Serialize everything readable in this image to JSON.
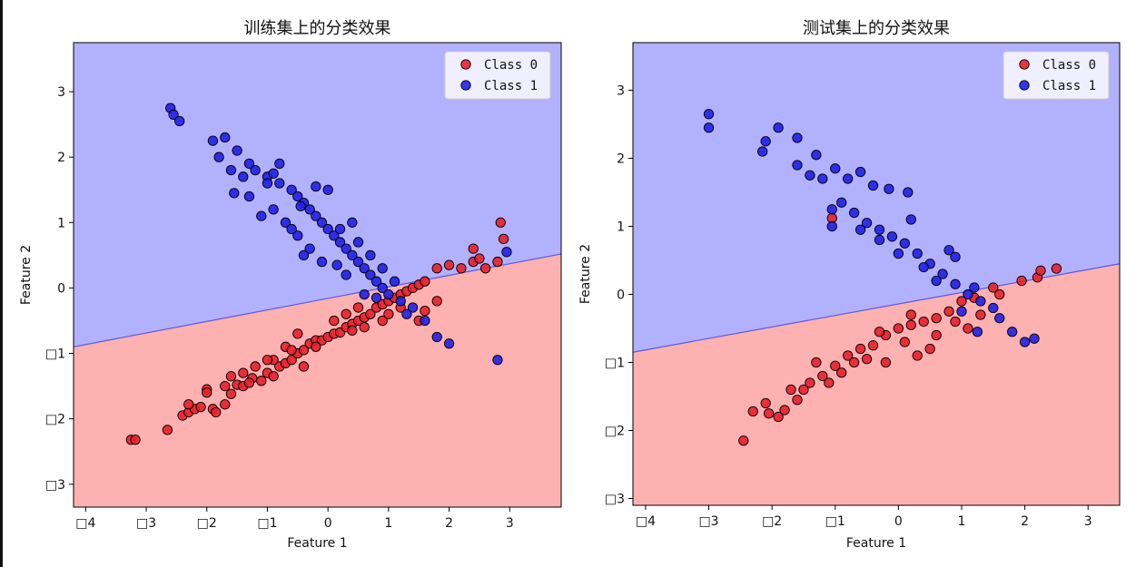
{
  "chart_data": [
    {
      "type": "scatter",
      "title": "训练集上的分类效果",
      "xlabel": "Feature 1",
      "ylabel": "Feature 2",
      "xlim": [
        -4.2,
        3.85
      ],
      "ylim": [
        -3.35,
        3.75
      ],
      "xticks": [
        -4,
        -3,
        -2,
        -1,
        0,
        1,
        2,
        3
      ],
      "xtick_labels": [
        "□4",
        "□3",
        "□2",
        "□1",
        "0",
        "1",
        "2",
        "3"
      ],
      "yticks": [
        -3,
        -2,
        -1,
        0,
        1,
        2,
        3
      ],
      "ytick_labels": [
        "□3",
        "□2",
        "□1",
        "0",
        "1",
        "2",
        "3"
      ],
      "legend_position": "top-right",
      "boundary": {
        "x": [
          -4.2,
          3.85
        ],
        "y": [
          -0.9,
          0.52
        ]
      },
      "regions": [
        {
          "name": "Class 1 region",
          "color": "#b1b1fe"
        },
        {
          "name": "Class 0 region",
          "color": "#feb1b1"
        }
      ],
      "series": [
        {
          "name": "Class 0",
          "color": "#e8202a",
          "points": [
            [
              -3.25,
              -2.32
            ],
            [
              -3.18,
              -2.32
            ],
            [
              -2.65,
              -2.17
            ],
            [
              -2.4,
              -1.95
            ],
            [
              -2.3,
              -1.9
            ],
            [
              -2.2,
              -1.85
            ],
            [
              -2.3,
              -1.78
            ],
            [
              -2.1,
              -1.82
            ],
            [
              -1.9,
              -1.85
            ],
            [
              -1.85,
              -1.9
            ],
            [
              -1.7,
              -1.78
            ],
            [
              -1.6,
              -1.62
            ],
            [
              -1.5,
              -1.48
            ],
            [
              -1.4,
              -1.5
            ],
            [
              -1.25,
              -1.38
            ],
            [
              -1.1,
              -1.42
            ],
            [
              -1.0,
              -1.3
            ],
            [
              -0.9,
              -1.35
            ],
            [
              -0.8,
              -1.2
            ],
            [
              -0.7,
              -1.15
            ],
            [
              -0.6,
              -1.1
            ],
            [
              -0.5,
              -1.0
            ],
            [
              -0.4,
              -0.95
            ],
            [
              -0.3,
              -0.85
            ],
            [
              -0.2,
              -0.8
            ],
            [
              -0.1,
              -0.8
            ],
            [
              0.0,
              -0.75
            ],
            [
              0.1,
              -0.7
            ],
            [
              0.2,
              -0.68
            ],
            [
              0.3,
              -0.6
            ],
            [
              0.4,
              -0.55
            ],
            [
              0.5,
              -0.5
            ],
            [
              0.6,
              -0.45
            ],
            [
              0.7,
              -0.4
            ],
            [
              0.8,
              -0.3
            ],
            [
              0.9,
              -0.25
            ],
            [
              1.0,
              -0.2
            ],
            [
              1.1,
              -0.15
            ],
            [
              1.2,
              -0.1
            ],
            [
              1.3,
              -0.05
            ],
            [
              1.4,
              0.0
            ],
            [
              1.5,
              0.05
            ],
            [
              1.6,
              0.1
            ],
            [
              1.8,
              0.3
            ],
            [
              2.0,
              0.35
            ],
            [
              2.2,
              0.3
            ],
            [
              2.4,
              0.4
            ],
            [
              2.5,
              0.45
            ],
            [
              2.85,
              1.0
            ],
            [
              2.9,
              0.75
            ],
            [
              2.8,
              0.4
            ],
            [
              2.6,
              0.3
            ],
            [
              2.4,
              0.6
            ],
            [
              -1.6,
              -1.35
            ],
            [
              -1.7,
              -1.5
            ],
            [
              -2.0,
              -1.55
            ],
            [
              -1.2,
              -1.2
            ],
            [
              -0.9,
              -1.1
            ],
            [
              -0.5,
              -0.7
            ],
            [
              0.3,
              -0.4
            ],
            [
              0.6,
              -0.6
            ],
            [
              1.5,
              -0.5
            ],
            [
              1.8,
              -0.2
            ],
            [
              -1.0,
              -1.1
            ],
            [
              -0.7,
              -0.9
            ],
            [
              -0.2,
              -0.9
            ],
            [
              0.5,
              -0.3
            ],
            [
              0.9,
              -0.5
            ],
            [
              1.2,
              -0.3
            ],
            [
              -2.0,
              -1.6
            ],
            [
              -1.4,
              -1.3
            ],
            [
              -0.4,
              -1.2
            ],
            [
              0.1,
              -0.5
            ],
            [
              1.0,
              -0.4
            ],
            [
              -1.3,
              -1.45
            ],
            [
              -0.6,
              -0.95
            ],
            [
              0.4,
              -0.65
            ],
            [
              1.6,
              -0.35
            ]
          ]
        },
        {
          "name": "Class 1",
          "color": "#2020e8",
          "points": [
            [
              -2.6,
              2.75
            ],
            [
              -2.55,
              2.65
            ],
            [
              -2.45,
              2.55
            ],
            [
              -1.9,
              2.25
            ],
            [
              -1.7,
              2.3
            ],
            [
              -1.5,
              2.1
            ],
            [
              -1.8,
              2.0
            ],
            [
              -1.6,
              1.8
            ],
            [
              -1.4,
              1.7
            ],
            [
              -1.2,
              1.8
            ],
            [
              -1.0,
              1.7
            ],
            [
              -0.8,
              1.6
            ],
            [
              -0.6,
              1.5
            ],
            [
              -0.5,
              1.4
            ],
            [
              -0.4,
              1.3
            ],
            [
              -0.3,
              1.2
            ],
            [
              -0.2,
              1.1
            ],
            [
              -0.1,
              1.0
            ],
            [
              0.0,
              0.9
            ],
            [
              0.1,
              0.8
            ],
            [
              0.2,
              0.7
            ],
            [
              0.3,
              0.6
            ],
            [
              0.4,
              0.5
            ],
            [
              0.5,
              0.4
            ],
            [
              0.6,
              0.3
            ],
            [
              0.7,
              0.2
            ],
            [
              0.8,
              0.1
            ],
            [
              0.9,
              0.0
            ],
            [
              1.0,
              -0.1
            ],
            [
              1.2,
              -0.2
            ],
            [
              1.4,
              -0.3
            ],
            [
              1.6,
              -0.5
            ],
            [
              1.8,
              -0.75
            ],
            [
              2.0,
              -0.85
            ],
            [
              2.8,
              -1.1
            ],
            [
              2.95,
              0.55
            ],
            [
              -0.9,
              1.2
            ],
            [
              -0.7,
              1.0
            ],
            [
              -0.5,
              0.8
            ],
            [
              -0.3,
              0.6
            ],
            [
              -0.1,
              0.4
            ],
            [
              0.2,
              0.9
            ],
            [
              0.4,
              1.0
            ],
            [
              -1.1,
              1.1
            ],
            [
              -1.3,
              1.4
            ],
            [
              -1.55,
              1.45
            ],
            [
              -0.2,
              1.55
            ],
            [
              0.0,
              1.5
            ],
            [
              -0.8,
              1.9
            ],
            [
              -1.0,
              1.6
            ],
            [
              0.5,
              0.7
            ],
            [
              0.7,
              0.5
            ],
            [
              0.9,
              0.3
            ],
            [
              1.1,
              0.1
            ],
            [
              -0.6,
              0.9
            ],
            [
              -0.4,
              0.5
            ],
            [
              0.3,
              0.2
            ],
            [
              0.6,
              -0.1
            ],
            [
              1.3,
              -0.4
            ],
            [
              -1.3,
              1.9
            ],
            [
              -0.9,
              1.75
            ],
            [
              -0.45,
              1.25
            ],
            [
              0.15,
              0.35
            ],
            [
              0.8,
              -0.15
            ]
          ]
        }
      ]
    },
    {
      "type": "scatter",
      "title": "测试集上的分类效果",
      "xlabel": "Feature 1",
      "ylabel": "Feature 2",
      "xlim": [
        -4.2,
        3.5
      ],
      "ylim": [
        -3.1,
        3.7
      ],
      "xticks": [
        -4,
        -3,
        -2,
        -1,
        0,
        1,
        2,
        3
      ],
      "xtick_labels": [
        "□4",
        "□3",
        "□2",
        "□1",
        "0",
        "1",
        "2",
        "3"
      ],
      "yticks": [
        -3,
        -2,
        -1,
        0,
        1,
        2,
        3
      ],
      "ytick_labels": [
        "□3",
        "□2",
        "□1",
        "0",
        "1",
        "2",
        "3"
      ],
      "legend_position": "top-right",
      "boundary": {
        "x": [
          -4.2,
          3.5
        ],
        "y": [
          -0.85,
          0.45
        ]
      },
      "regions": [
        {
          "name": "Class 1 region",
          "color": "#b1b1fe"
        },
        {
          "name": "Class 0 region",
          "color": "#feb1b1"
        }
      ],
      "series": [
        {
          "name": "Class 0",
          "color": "#e8202a",
          "points": [
            [
              -2.45,
              -2.15
            ],
            [
              -2.3,
              -1.72
            ],
            [
              -2.05,
              -1.75
            ],
            [
              -1.9,
              -1.8
            ],
            [
              -1.8,
              -1.7
            ],
            [
              -1.6,
              -1.55
            ],
            [
              -1.5,
              -1.4
            ],
            [
              -1.4,
              -1.3
            ],
            [
              -1.2,
              -1.2
            ],
            [
              -1.0,
              -1.05
            ],
            [
              -0.8,
              -0.9
            ],
            [
              -0.6,
              -0.8
            ],
            [
              -0.4,
              -0.75
            ],
            [
              -0.2,
              -0.6
            ],
            [
              0.0,
              -0.5
            ],
            [
              0.2,
              -0.45
            ],
            [
              0.4,
              -0.4
            ],
            [
              0.6,
              -0.35
            ],
            [
              0.8,
              -0.25
            ],
            [
              1.0,
              -0.1
            ],
            [
              1.2,
              -0.05
            ],
            [
              1.5,
              0.1
            ],
            [
              1.95,
              0.2
            ],
            [
              2.2,
              0.25
            ],
            [
              2.25,
              0.35
            ],
            [
              2.5,
              0.38
            ],
            [
              -1.05,
              1.12
            ],
            [
              -1.3,
              -1.0
            ],
            [
              -0.9,
              -1.15
            ],
            [
              -0.5,
              -0.95
            ],
            [
              0.1,
              -0.7
            ],
            [
              0.3,
              -0.9
            ],
            [
              0.6,
              -0.6
            ],
            [
              1.1,
              -0.5
            ],
            [
              1.3,
              -0.3
            ],
            [
              -2.1,
              -1.6
            ],
            [
              -1.7,
              -1.4
            ],
            [
              -0.7,
              -1.0
            ],
            [
              -0.2,
              -1.0
            ],
            [
              0.5,
              -0.8
            ],
            [
              0.9,
              -0.4
            ],
            [
              1.6,
              0.0
            ],
            [
              -1.1,
              -1.3
            ],
            [
              -0.3,
              -0.55
            ],
            [
              0.2,
              -0.3
            ]
          ]
        },
        {
          "name": "Class 1",
          "color": "#2020e8",
          "points": [
            [
              -3.0,
              2.65
            ],
            [
              -3.0,
              2.45
            ],
            [
              -2.1,
              2.25
            ],
            [
              -2.15,
              2.1
            ],
            [
              -1.9,
              2.45
            ],
            [
              -1.6,
              2.3
            ],
            [
              -1.6,
              1.9
            ],
            [
              -1.4,
              1.75
            ],
            [
              -1.3,
              2.05
            ],
            [
              -1.2,
              1.7
            ],
            [
              -1.0,
              1.85
            ],
            [
              -0.8,
              1.7
            ],
            [
              -0.6,
              1.8
            ],
            [
              -0.4,
              1.6
            ],
            [
              -0.15,
              1.55
            ],
            [
              0.15,
              1.5
            ],
            [
              -1.05,
              1.25
            ],
            [
              -0.9,
              1.35
            ],
            [
              -0.7,
              1.2
            ],
            [
              -0.5,
              1.05
            ],
            [
              -0.3,
              0.95
            ],
            [
              -0.1,
              0.85
            ],
            [
              0.1,
              0.75
            ],
            [
              0.3,
              0.6
            ],
            [
              0.5,
              0.45
            ],
            [
              0.7,
              0.3
            ],
            [
              0.9,
              0.15
            ],
            [
              1.1,
              0.0
            ],
            [
              1.3,
              -0.1
            ],
            [
              1.6,
              -0.35
            ],
            [
              1.8,
              -0.55
            ],
            [
              2.0,
              -0.7
            ],
            [
              2.15,
              -0.65
            ],
            [
              -1.05,
              1.0
            ],
            [
              -0.3,
              0.8
            ],
            [
              0.0,
              0.6
            ],
            [
              0.4,
              0.4
            ],
            [
              0.8,
              0.65
            ],
            [
              0.9,
              0.55
            ],
            [
              1.0,
              -0.25
            ],
            [
              1.25,
              -0.55
            ],
            [
              -0.6,
              0.95
            ],
            [
              0.2,
              1.1
            ],
            [
              0.6,
              0.2
            ],
            [
              1.2,
              0.1
            ],
            [
              1.5,
              -0.2
            ]
          ]
        }
      ]
    }
  ]
}
